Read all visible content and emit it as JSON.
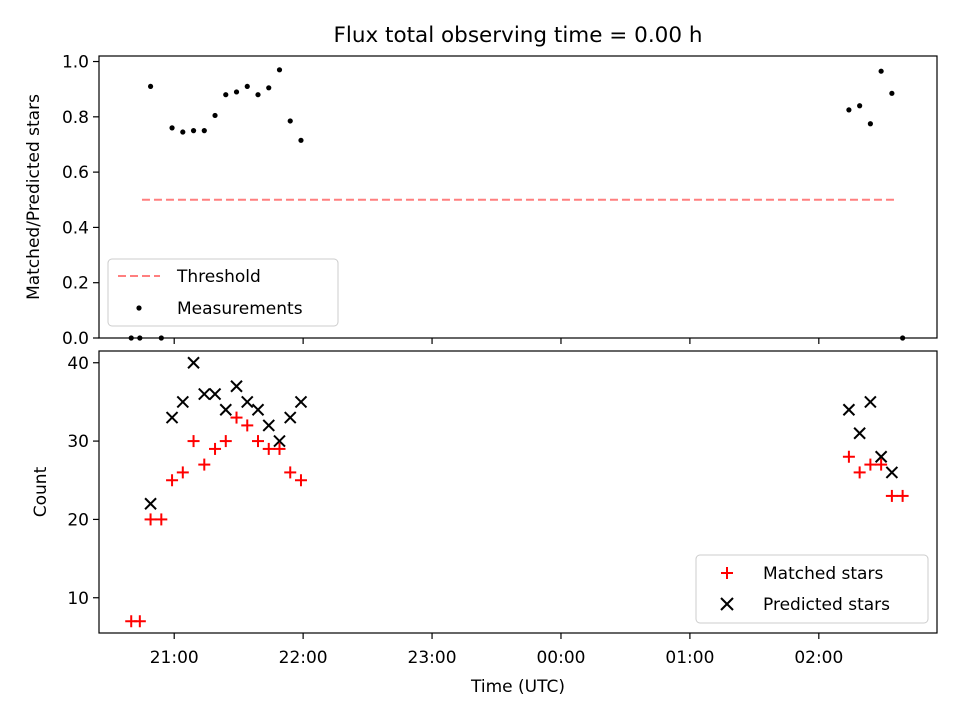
{
  "chart_data": [
    {
      "type": "scatter",
      "title": "Flux total observing time = 0.00 h",
      "ylabel": "Matched/Predicted stars",
      "xlabel": "",
      "ylim": [
        0,
        1.02
      ],
      "yticks": [
        "0.0",
        "0.2",
        "0.4",
        "0.6",
        "0.8",
        "1.0"
      ],
      "yticks_values": [
        0,
        0.2,
        0.4,
        0.6,
        0.8,
        1.0
      ],
      "threshold": {
        "name": "Threshold",
        "value": 0.5,
        "x": [
          "20:45",
          "02:35"
        ],
        "color": "#ff7f7f"
      },
      "series": [
        {
          "name": "Measurements",
          "color": "#000000",
          "points": [
            [
              "20:40",
              0.0
            ],
            [
              "20:44",
              0.0
            ],
            [
              "20:49",
              0.91
            ],
            [
              "20:54",
              0.0
            ],
            [
              "20:59",
              0.76
            ],
            [
              "21:04",
              0.745
            ],
            [
              "21:09",
              0.75
            ],
            [
              "21:14",
              0.75
            ],
            [
              "21:19",
              0.805
            ],
            [
              "21:24",
              0.88
            ],
            [
              "21:29",
              0.89
            ],
            [
              "21:34",
              0.91
            ],
            [
              "21:39",
              0.88
            ],
            [
              "21:44",
              0.905
            ],
            [
              "21:49",
              0.97
            ],
            [
              "21:54",
              0.785
            ],
            [
              "21:59",
              0.715
            ],
            [
              "02:14",
              0.825
            ],
            [
              "02:19",
              0.84
            ],
            [
              "02:24",
              0.775
            ],
            [
              "02:29",
              0.965
            ],
            [
              "02:34",
              0.885
            ],
            [
              "02:39",
              0.0
            ]
          ]
        }
      ],
      "legend": "lower-left"
    },
    {
      "type": "scatter",
      "title": "",
      "xlabel": "Time (UTC)",
      "ylabel": "Count",
      "ylim": [
        5.5,
        41.5
      ],
      "yticks": [
        "10",
        "20",
        "30",
        "40"
      ],
      "yticks_values": [
        10,
        20,
        30,
        40
      ],
      "xlim": [
        "20:25",
        "02:55"
      ],
      "xticks": [
        "21:00",
        "22:00",
        "23:00",
        "00:00",
        "01:00",
        "02:00"
      ],
      "series": [
        {
          "name": "Matched stars",
          "marker": "plus",
          "color": "#ff0000",
          "points": [
            [
              "20:40",
              7
            ],
            [
              "20:44",
              7
            ],
            [
              "20:49",
              20
            ],
            [
              "20:54",
              20
            ],
            [
              "20:59",
              25
            ],
            [
              "21:04",
              26
            ],
            [
              "21:09",
              30
            ],
            [
              "21:14",
              27
            ],
            [
              "21:19",
              29
            ],
            [
              "21:24",
              30
            ],
            [
              "21:29",
              33
            ],
            [
              "21:34",
              32
            ],
            [
              "21:39",
              30
            ],
            [
              "21:44",
              29
            ],
            [
              "21:49",
              29
            ],
            [
              "21:54",
              26
            ],
            [
              "21:59",
              25
            ],
            [
              "02:14",
              28
            ],
            [
              "02:19",
              26
            ],
            [
              "02:24",
              27
            ],
            [
              "02:29",
              27
            ],
            [
              "02:34",
              23
            ],
            [
              "02:39",
              23
            ]
          ]
        },
        {
          "name": "Predicted stars",
          "marker": "x",
          "color": "#000000",
          "points": [
            [
              "20:49",
              22
            ],
            [
              "20:59",
              33
            ],
            [
              "21:04",
              35
            ],
            [
              "21:09",
              40
            ],
            [
              "21:14",
              36
            ],
            [
              "21:19",
              36
            ],
            [
              "21:24",
              34
            ],
            [
              "21:29",
              37
            ],
            [
              "21:34",
              35
            ],
            [
              "21:39",
              34
            ],
            [
              "21:44",
              32
            ],
            [
              "21:49",
              30
            ],
            [
              "21:54",
              33
            ],
            [
              "21:59",
              35
            ],
            [
              "02:14",
              34
            ],
            [
              "02:19",
              31
            ],
            [
              "02:24",
              35
            ],
            [
              "02:29",
              28
            ],
            [
              "02:34",
              26
            ]
          ]
        }
      ],
      "legend": "lower-right"
    }
  ]
}
